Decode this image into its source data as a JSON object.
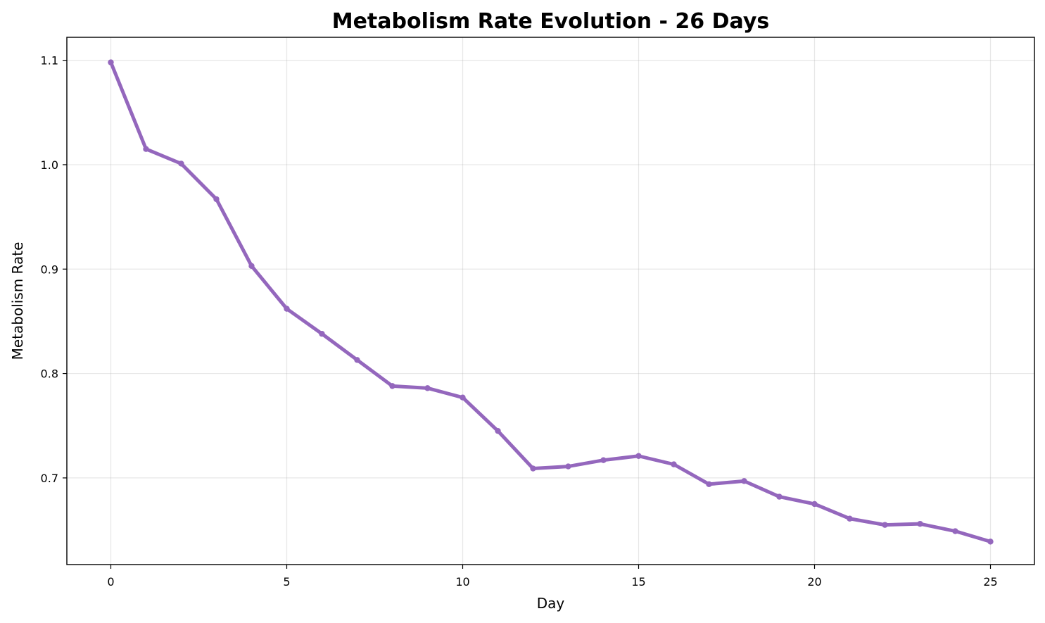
{
  "chart_data": {
    "type": "line",
    "title": "Metabolism Rate Evolution - 26 Days",
    "xlabel": "Day",
    "ylabel": "Metabolism Rate",
    "xlim": [
      -1.25,
      26.25
    ],
    "ylim": [
      0.617,
      1.122
    ],
    "x_ticks": [
      0,
      5,
      10,
      15,
      20,
      25
    ],
    "y_ticks": [
      0.7,
      0.8,
      0.9,
      1.0,
      1.1
    ],
    "grid": true,
    "legend": "none",
    "line_color": "#9467bd",
    "series": [
      {
        "x": [
          0,
          1,
          2,
          3,
          4,
          5,
          6,
          7,
          8,
          9,
          10,
          11,
          12,
          13,
          14,
          15,
          16,
          17,
          18,
          19,
          20,
          21,
          22,
          23,
          24,
          25
        ],
        "y": [
          1.098,
          1.015,
          1.001,
          0.967,
          0.903,
          0.862,
          0.838,
          0.813,
          0.788,
          0.786,
          0.777,
          0.745,
          0.709,
          0.711,
          0.717,
          0.721,
          0.713,
          0.694,
          0.697,
          0.682,
          0.675,
          0.661,
          0.655,
          0.656,
          0.649,
          0.639
        ]
      }
    ]
  }
}
